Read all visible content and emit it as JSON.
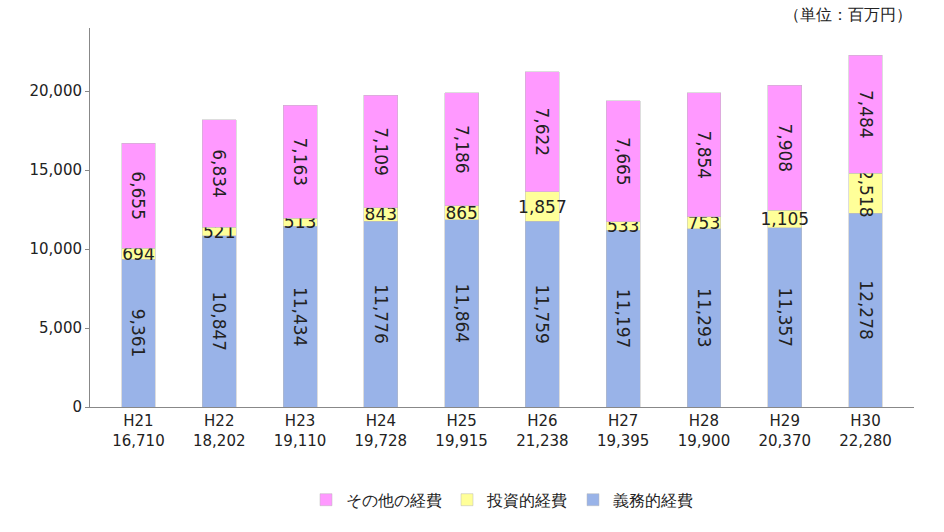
{
  "chart_data": {
    "type": "bar",
    "stacked": true,
    "data_labels": true,
    "grid": false,
    "legend": "bottom",
    "annotations": [
      "（単位：百万円）"
    ],
    "categories": [
      "H21\n16,710",
      "H22\n18,202",
      "H23\n19,110",
      "H24\n19,728",
      "H25\n19,915",
      "H26\n21,238",
      "H27\n19,395",
      "H28\n19,900",
      "H29\n20,370",
      "H30\n22,280"
    ],
    "ylim": [
      0,
      24000
    ],
    "yticks": [
      0,
      {
        "value": 5000,
        "label": "5,000"
      },
      {
        "value": 10000,
        "label": "10,000"
      },
      {
        "value": 15000,
        "label": "15,000"
      },
      {
        "value": 20000,
        "label": "20,000"
      }
    ],
    "series": [
      {
        "name": "義務的経費",
        "color": "#99b3e8",
        "values": [
          9361,
          10847,
          11434,
          11776,
          11864,
          11759,
          11197,
          11293,
          11357,
          12278
        ],
        "value_labels": [
          "9,361",
          "10,847",
          "11,434",
          "11,776",
          "11,864",
          "11,759",
          "11,197",
          "11,293",
          "11,357",
          "12,278"
        ]
      },
      {
        "name": "投資的経費",
        "color": "#ffff99",
        "values": [
          694,
          521,
          513,
          843,
          865,
          1857,
          533,
          753,
          1105,
          2518
        ],
        "value_labels": [
          "694",
          "521",
          "513",
          "843",
          "865",
          "1,857",
          "533",
          "753",
          "1,105",
          "2,518"
        ]
      },
      {
        "name": "その他の経費",
        "color": "#ff99ff",
        "values": [
          6655,
          6834,
          7163,
          7109,
          7186,
          7622,
          7665,
          7854,
          7908,
          7484
        ],
        "value_labels": [
          "6,655",
          "6,834",
          "7,163",
          "7,109",
          "7,186",
          "7,622",
          "7,665",
          "7,854",
          "7,908",
          "7,484"
        ]
      }
    ]
  }
}
